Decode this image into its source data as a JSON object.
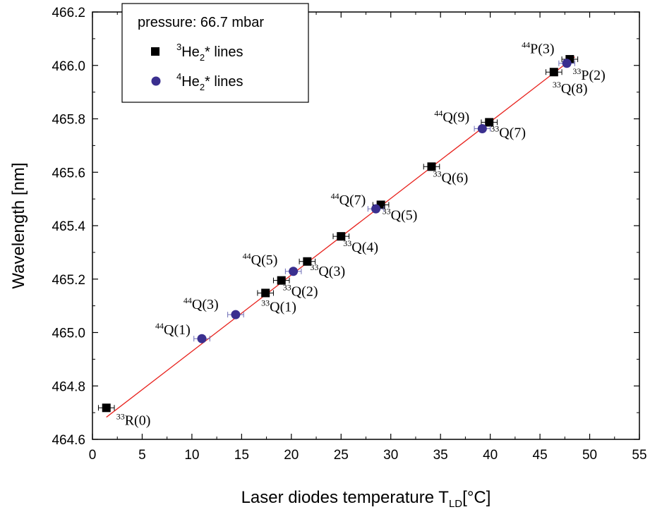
{
  "chart_data": {
    "type": "scatter",
    "xlabel": "Laser diodes temperature T",
    "xlabel_sub": "LD",
    "xlabel_unit": "[°C]",
    "ylabel": "Wavelength [nm]",
    "xlim": [
      0,
      55
    ],
    "ylim": [
      464.6,
      466.2
    ],
    "xticks": [
      "0",
      "5",
      "10",
      "15",
      "20",
      "25",
      "30",
      "35",
      "40",
      "45",
      "50",
      "55"
    ],
    "yticks": [
      "464.6",
      "464.8",
      "465.0",
      "465.2",
      "465.4",
      "465.6",
      "465.8",
      "466.0",
      "466.2"
    ],
    "legend": {
      "title": "pressure: 66.7 mbar",
      "placement": "top-left",
      "entries": [
        {
          "sup": "3",
          "main": "He",
          "sub": "2",
          "tail": "* lines",
          "marker": "square",
          "color": "#000000"
        },
        {
          "sup": "4",
          "main": "He",
          "sub": "2",
          "tail": "*  lines",
          "marker": "circle",
          "color": "#3a2f8f"
        }
      ]
    },
    "series": [
      {
        "name": "3He2* lines",
        "marker": "square",
        "color": "#000000",
        "x_error": 0.8,
        "points": [
          {
            "x": 1.4,
            "y": 464.718,
            "label_sup": "33",
            "label": "R(0)"
          },
          {
            "x": 17.4,
            "y": 465.148,
            "label_sup": "33",
            "label": "Q(1)"
          },
          {
            "x": 19.0,
            "y": 465.195,
            "label_sup": "33",
            "label": "Q(2)"
          },
          {
            "x": 21.6,
            "y": 465.266,
            "label_sup": "33",
            "label": "Q(3)"
          },
          {
            "x": 25.0,
            "y": 465.36,
            "label_sup": "33",
            "label": "Q(4)"
          },
          {
            "x": 29.0,
            "y": 465.478,
            "label_sup": "33",
            "label": "Q(5)"
          },
          {
            "x": 34.1,
            "y": 465.621,
            "label_sup": "33",
            "label": "Q(6)"
          },
          {
            "x": 39.9,
            "y": 465.787,
            "label_sup": "33",
            "label": "Q(7)"
          },
          {
            "x": 46.4,
            "y": 465.975,
            "label_sup": "33",
            "label": "Q(8)"
          },
          {
            "x": 48.0,
            "y": 466.023,
            "label_sup": "33",
            "label": "P(2)"
          }
        ]
      },
      {
        "name": "4He2* lines",
        "marker": "circle",
        "color": "#3a2f8f",
        "x_error": 0.8,
        "points": [
          {
            "x": 11.0,
            "y": 464.977,
            "label_sup": "44",
            "label": "Q(1)"
          },
          {
            "x": 14.4,
            "y": 465.067,
            "label_sup": "44",
            "label": "Q(3)"
          },
          {
            "x": 20.2,
            "y": 465.229,
            "label_sup": "44",
            "label": "Q(5)"
          },
          {
            "x": 28.5,
            "y": 465.463,
            "label_sup": "44",
            "label": "Q(7)"
          },
          {
            "x": 39.2,
            "y": 465.763,
            "label_sup": "44",
            "label": "Q(9)"
          },
          {
            "x": 47.7,
            "y": 466.008,
            "label_sup": "44",
            "label": "P(3)"
          }
        ]
      }
    ],
    "fit_line": {
      "color": "#e8231e",
      "x": [
        1.4,
        48.5
      ],
      "y": [
        464.683,
        466.032
      ]
    },
    "grid": false
  }
}
